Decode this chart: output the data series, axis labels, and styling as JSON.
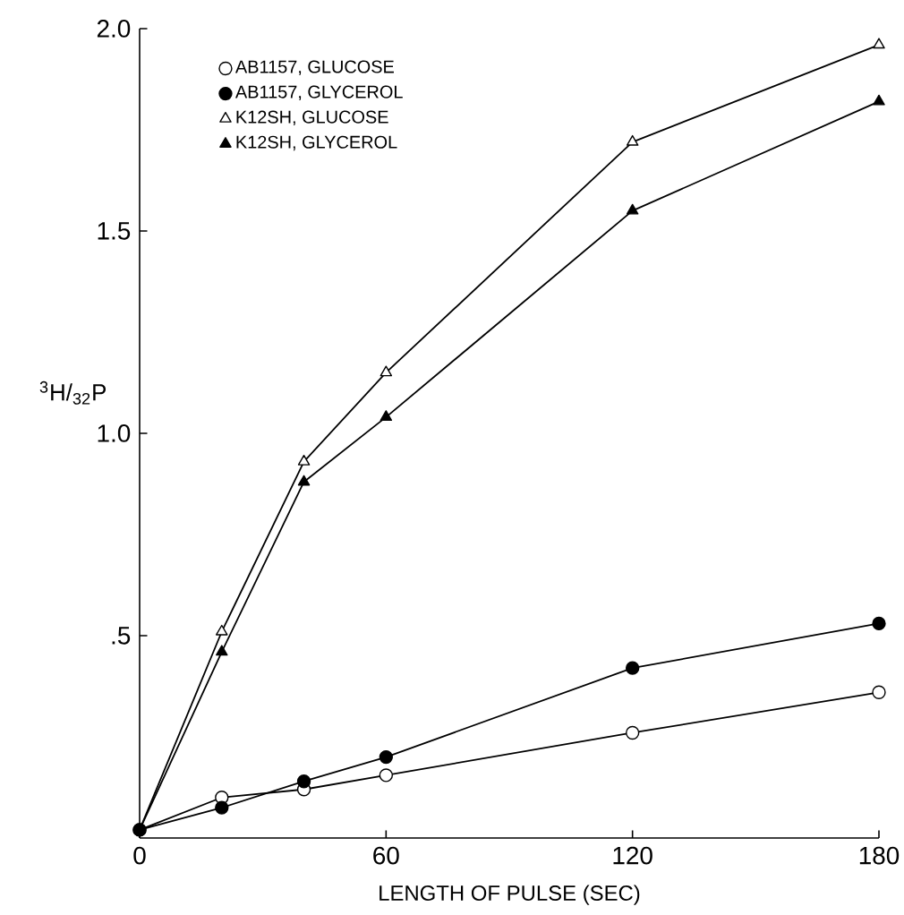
{
  "chart_data": {
    "type": "line",
    "xlabel": "LENGTH OF PULSE (SEC)",
    "ylabel": "$^{3}$H/$_{32}$P",
    "x": [
      0,
      20,
      40,
      60,
      120,
      180
    ],
    "xlim": [
      0,
      180
    ],
    "xticks": [
      0,
      60,
      120,
      180
    ],
    "ylim": [
      0,
      2.0
    ],
    "yticks": [
      {
        "value": 0.5,
        "label": ".5"
      },
      {
        "value": 1.0,
        "label": "1.0"
      },
      {
        "value": 1.5,
        "label": "1.5"
      },
      {
        "value": 2.0,
        "label": "2.0"
      }
    ],
    "grid": false,
    "legend": "top left",
    "line_style": "solid",
    "series": [
      {
        "name": "AB1157, GLUCOSE",
        "color": "#ffffff",
        "marker": "circle",
        "values": [
          0.02,
          0.1,
          0.12,
          0.155,
          0.26,
          0.36
        ]
      },
      {
        "name": "AB1157, GLYCEROL",
        "color": "#000000",
        "marker": "circle",
        "values": [
          0.02,
          0.075,
          0.14,
          0.2,
          0.42,
          0.53
        ]
      },
      {
        "name": "K12SH, GLUCOSE",
        "color": "#ffffff",
        "marker": "triangle",
        "values": [
          0.02,
          0.51,
          0.93,
          1.15,
          1.72,
          1.96
        ]
      },
      {
        "name": "K12SH, GLYCEROL",
        "color": "#000000",
        "marker": "triangle",
        "values": [
          0.02,
          0.46,
          0.88,
          1.04,
          1.55,
          1.82
        ]
      }
    ]
  }
}
